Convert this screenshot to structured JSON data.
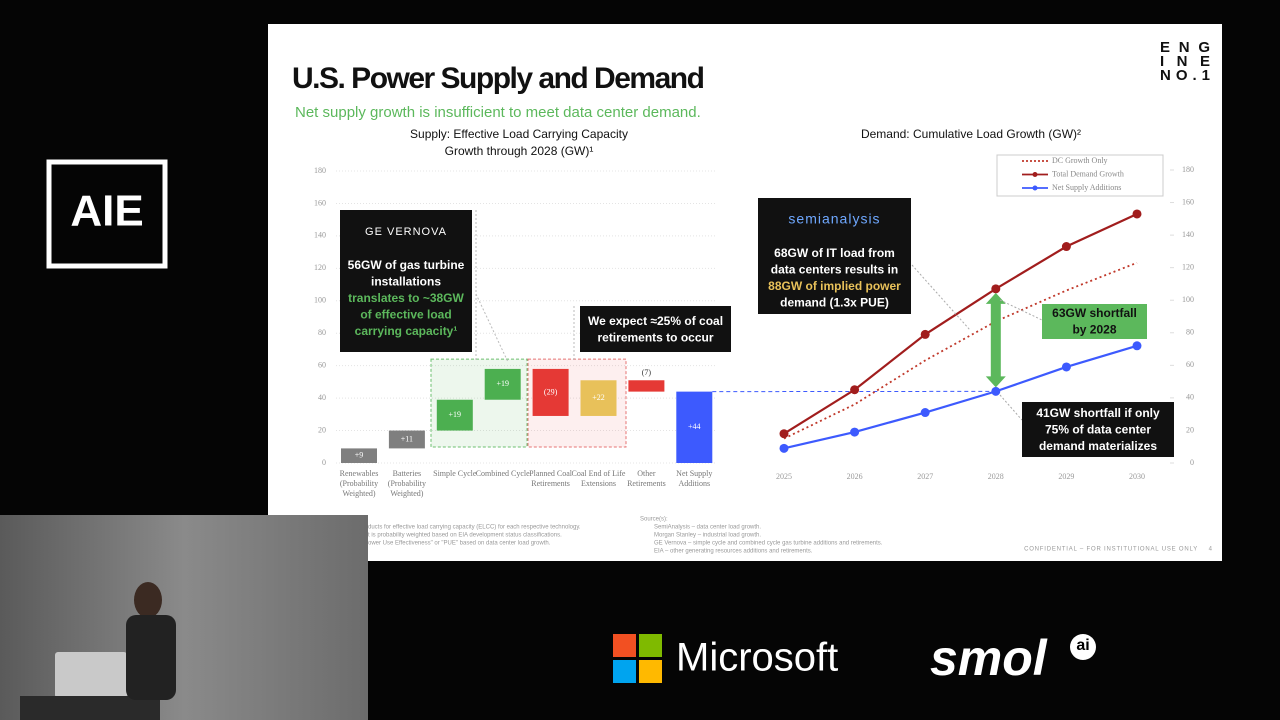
{
  "event_logo": "AIE",
  "slide": {
    "title": "U.S. Power Supply and Demand",
    "subtitle": "Net supply growth is insufficient to meet data center demand.",
    "logo": [
      "ENG",
      "INE",
      "NO.1"
    ],
    "footnotes": [
      "ducts for effective load carrying capacity (ELCC) for each respective technology.",
      "t is probability weighted based on EIA development status classifications.",
      "ower Use Effectiveness\" or \"PUE\" based on data center load growth."
    ],
    "sources_title": "Source(s):",
    "sources": [
      "SemiAnalysis – data center load growth.",
      "Morgan Stanley – industrial load growth.",
      "GE Vernova – simple cycle and combined cycle gas turbine additions and retirements.",
      "EIA – other generating resources additions and retirements."
    ],
    "confidential": "CONFIDENTIAL – FOR INSTITUTIONAL USE ONLY",
    "page": "4"
  },
  "chart_data": [
    {
      "type": "waterfall",
      "title": [
        "Supply: Effective Load Carrying Capacity",
        "Growth through 2028 (GW)¹"
      ],
      "categories": [
        "Renewables (Probability Weighted)",
        "Batteries (Probability Weighted)",
        "Simple Cycle",
        "Combined Cycle",
        "Planned Coal Retirements",
        "Coal End of Life Extensions",
        "Other Retirements",
        "Net Supply Additions"
      ],
      "values": [
        9,
        11,
        19,
        19,
        -29,
        22,
        -7,
        44
      ],
      "value_labels": [
        "+9",
        "+11",
        "+19",
        "+19",
        "(29)",
        "+22",
        "(7)",
        "+44"
      ],
      "colors": [
        "#7f7f7f",
        "#7f7f7f",
        "#4caf50",
        "#4caf50",
        "#e53935",
        "#e8c15a",
        "#e53935",
        "#3d5afe"
      ],
      "ylim": [
        0,
        180
      ],
      "yticks": [
        0,
        20,
        40,
        60,
        80,
        100,
        120,
        140,
        160,
        180
      ],
      "grid": true,
      "annotations": [
        {
          "brand": "GE VERNOVA",
          "lines": [
            "56GW of gas turbine",
            "installations",
            "translates to ~38GW",
            "of effective load",
            "carrying capacity¹"
          ]
        },
        {
          "lines": [
            "We expect ≈25% of coal",
            "retirements to occur"
          ]
        }
      ]
    },
    {
      "type": "line",
      "title": [
        "Demand: Cumulative Load Growth (GW)²"
      ],
      "categories": [
        "2025",
        "2026",
        "2027",
        "2028",
        "2029",
        "2030"
      ],
      "series": [
        {
          "name": "DC Growth Only",
          "color": "#c0392b",
          "line_style": "dotted",
          "markers": false,
          "values": [
            15,
            36,
            63,
            87,
            106,
            123
          ]
        },
        {
          "name": "Total Demand Growth",
          "color": "#a11d1d",
          "line_style": "solid",
          "markers": true,
          "values": [
            18,
            45,
            79,
            107,
            133,
            153
          ]
        },
        {
          "name": "Net Supply Additions",
          "color": "#3d5afe",
          "line_style": "solid",
          "markers": true,
          "values": [
            9,
            19,
            31,
            44,
            59,
            72
          ]
        }
      ],
      "ylim": [
        0,
        180
      ],
      "yticks": [
        0,
        20,
        40,
        60,
        80,
        100,
        120,
        140,
        160,
        180
      ],
      "legend": "upper right",
      "annotations": [
        {
          "brand": "semianalysis",
          "lines": [
            "68GW of IT load from",
            "data centers results in",
            "88GW of implied power",
            "demand (1.3x PUE)"
          ]
        },
        {
          "lines": [
            "63GW shortfall",
            "by 2028"
          ]
        },
        {
          "lines": [
            "41GW shortfall if only",
            "75% of data center",
            "demand materializes"
          ]
        }
      ]
    }
  ],
  "sponsors": [
    "Microsoft",
    "smol",
    "ai"
  ]
}
